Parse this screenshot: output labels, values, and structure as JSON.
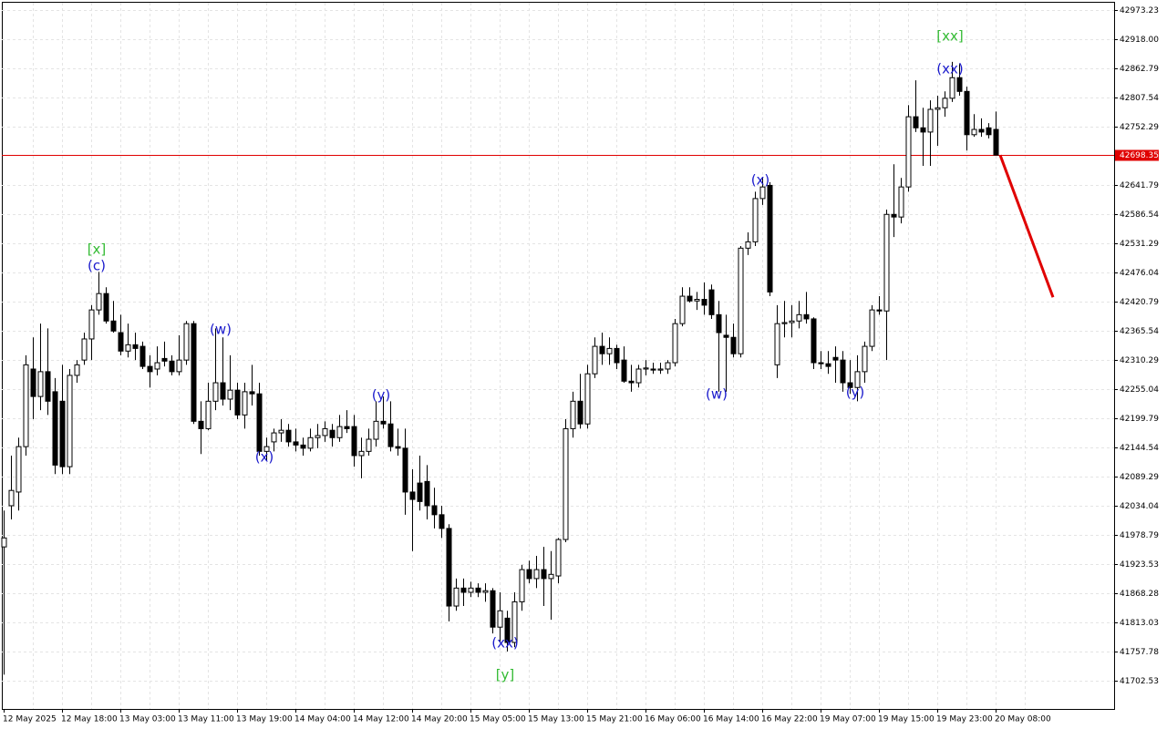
{
  "chart_data": {
    "type": "candlestick",
    "bull_color": "#ffffff",
    "bear_color": "#000000",
    "outline_color": "#000000",
    "grid": true,
    "current_price": 42698.35,
    "current_color": "#e00000",
    "forecast": [
      42698.35,
      42429
    ],
    "forecast_color": "#e00000",
    "ylim": [
      41649.0,
      42987.0
    ],
    "yticks": [
      {
        "value": 42973.23,
        "label": "42973.23"
      },
      {
        "value": 42918.0,
        "label": "42918.00"
      },
      {
        "value": 42862.79,
        "label": "42862.79"
      },
      {
        "value": 42807.54,
        "label": "42807.54"
      },
      {
        "value": 42752.29,
        "label": "42752.29"
      },
      {
        "value": 42641.79,
        "label": "42641.79"
      },
      {
        "value": 42586.54,
        "label": "42586.54"
      },
      {
        "value": 42531.29,
        "label": "42531.29"
      },
      {
        "value": 42476.04,
        "label": "42476.04"
      },
      {
        "value": 42420.79,
        "label": "42420.79"
      },
      {
        "value": 42365.54,
        "label": "42365.54"
      },
      {
        "value": 42310.29,
        "label": "42310.29"
      },
      {
        "value": 42255.04,
        "label": "42255.04"
      },
      {
        "value": 42199.79,
        "label": "42199.79"
      },
      {
        "value": 42144.54,
        "label": "42144.54"
      },
      {
        "value": 42089.29,
        "label": "42089.29"
      },
      {
        "value": 42034.04,
        "label": "42034.04"
      },
      {
        "value": 41978.79,
        "label": "41978.79"
      },
      {
        "value": 41923.53,
        "label": "41923.53"
      },
      {
        "value": 41868.28,
        "label": "41868.28"
      },
      {
        "value": 41813.03,
        "label": "41813.03"
      },
      {
        "value": 41757.78,
        "label": "41757.78"
      },
      {
        "value": 41702.53,
        "label": "41702.53"
      }
    ],
    "x_labels": [
      "12 May 2025",
      "12 May 18:00",
      "13 May 03:00",
      "13 May 11:00",
      "13 May 19:00",
      "14 May 04:00",
      "14 May 12:00",
      "14 May 20:00",
      "15 May 05:00",
      "15 May 13:00",
      "15 May 21:00",
      "16 May 06:00",
      "16 May 14:00",
      "16 May 22:00",
      "19 May 07:00",
      "19 May 15:00",
      "19 May 23:00",
      "20 May 08:00"
    ],
    "annotations": [
      {
        "text": "[x]",
        "color": "#33bb33"
      },
      {
        "text": "(c)",
        "color": "#1a1acc"
      },
      {
        "text": "(w)",
        "color": "#1a1acc"
      },
      {
        "text": "(x)",
        "color": "#1a1acc"
      },
      {
        "text": "(y)",
        "color": "#1a1acc"
      },
      {
        "text": "(xx)",
        "color": "#1a1acc"
      },
      {
        "text": "[y]",
        "color": "#33bb33"
      },
      {
        "text": "(w)",
        "color": "#1a1acc"
      },
      {
        "text": "(x)",
        "color": "#1a1acc"
      },
      {
        "text": "(y)",
        "color": "#1a1acc"
      },
      {
        "text": "(xx)",
        "color": "#1a1acc"
      },
      {
        "text": "[xx]",
        "color": "#33bb33"
      }
    ],
    "candles": [
      [
        41956,
        42025,
        41714,
        41973
      ],
      [
        42034,
        42129,
        42008,
        42063
      ],
      [
        42060,
        42163,
        42025,
        42146
      ],
      [
        42146,
        42319,
        42129,
        42301
      ],
      [
        42293,
        42353,
        42198,
        42241
      ],
      [
        42241,
        42379,
        42215,
        42288
      ],
      [
        42288,
        42370,
        42206,
        42232
      ],
      [
        42250,
        42276,
        42094,
        42111
      ],
      [
        42232,
        42301,
        42094,
        42108
      ],
      [
        42108,
        42293,
        42094,
        42281
      ],
      [
        42281,
        42310,
        42267,
        42301
      ],
      [
        42310,
        42362,
        42301,
        42350
      ],
      [
        42350,
        42414,
        42310,
        42405
      ],
      [
        42405,
        42477,
        42396,
        42436
      ],
      [
        42436,
        42448,
        42379,
        42384
      ],
      [
        42384,
        42422,
        42362,
        42365
      ],
      [
        42362,
        42396,
        42319,
        42327
      ],
      [
        42327,
        42379,
        42315,
        42339
      ],
      [
        42339,
        42362,
        42310,
        42332
      ],
      [
        42336,
        42345,
        42293,
        42298
      ],
      [
        42298,
        42319,
        42258,
        42288
      ],
      [
        42293,
        42336,
        42281,
        42305
      ],
      [
        42313,
        42345,
        42298,
        42308
      ],
      [
        42308,
        42319,
        42281,
        42288
      ],
      [
        42288,
        42357,
        42281,
        42310
      ],
      [
        42310,
        42384,
        42301,
        42379
      ],
      [
        42379,
        42384,
        42189,
        42194
      ],
      [
        42194,
        42232,
        42132,
        42180
      ],
      [
        42180,
        42267,
        42177,
        42232
      ],
      [
        42232,
        42370,
        42215,
        42267
      ],
      [
        42267,
        42353,
        42224,
        42236
      ],
      [
        42236,
        42319,
        42215,
        42253
      ],
      [
        42253,
        42267,
        42198,
        42206
      ],
      [
        42206,
        42267,
        42180,
        42250
      ],
      [
        42250,
        42301,
        42224,
        42246
      ],
      [
        42246,
        42267,
        42129,
        42137
      ],
      [
        42137,
        42163,
        42120,
        42146
      ],
      [
        42155,
        42180,
        42137,
        42172
      ],
      [
        42172,
        42198,
        42155,
        42177
      ],
      [
        42177,
        42189,
        42146,
        42155
      ],
      [
        42155,
        42180,
        42137,
        42149
      ],
      [
        42149,
        42163,
        42129,
        42143
      ],
      [
        42143,
        42180,
        42137,
        42163
      ],
      [
        42163,
        42189,
        42143,
        42167
      ],
      [
        42167,
        42194,
        42155,
        42180
      ],
      [
        42177,
        42189,
        42146,
        42163
      ],
      [
        42163,
        42206,
        42155,
        42184
      ],
      [
        42184,
        42215,
        42172,
        42180
      ],
      [
        42184,
        42206,
        42108,
        42129
      ],
      [
        42129,
        42163,
        42086,
        42137
      ],
      [
        42137,
        42180,
        42129,
        42160
      ],
      [
        42160,
        42232,
        42146,
        42194
      ],
      [
        42194,
        42241,
        42180,
        42189
      ],
      [
        42189,
        42232,
        42137,
        42146
      ],
      [
        42146,
        42180,
        42129,
        42143
      ],
      [
        42143,
        42180,
        42017,
        42060
      ],
      [
        42060,
        42103,
        41948,
        42046
      ],
      [
        42077,
        42129,
        42025,
        42042
      ],
      [
        42080,
        42111,
        42008,
        42034
      ],
      [
        42034,
        42068,
        41991,
        42017
      ],
      [
        42017,
        42034,
        41973,
        41991
      ],
      [
        41991,
        41999,
        41815,
        41844
      ],
      [
        41844,
        41896,
        41835,
        41878
      ],
      [
        41878,
        41896,
        41844,
        41870
      ],
      [
        41870,
        41890,
        41861,
        41878
      ],
      [
        41878,
        41887,
        41861,
        41870
      ],
      [
        41870,
        41887,
        41852,
        41873
      ],
      [
        41873,
        41878,
        41792,
        41804
      ],
      [
        41804,
        41870,
        41775,
        41835
      ],
      [
        41821,
        41835,
        41758,
        41775
      ],
      [
        41775,
        41870,
        41766,
        41852
      ],
      [
        41852,
        41922,
        41835,
        41913
      ],
      [
        41913,
        41930,
        41887,
        41896
      ],
      [
        41896,
        41939,
        41878,
        41913
      ],
      [
        41913,
        41956,
        41844,
        41896
      ],
      [
        41896,
        41948,
        41818,
        41904
      ],
      [
        41901,
        41973,
        41887,
        41970
      ],
      [
        41970,
        42198,
        41965,
        42180
      ],
      [
        42180,
        42250,
        42163,
        42232
      ],
      [
        42232,
        42284,
        42180,
        42189
      ],
      [
        42189,
        42301,
        42180,
        42284
      ],
      [
        42284,
        42353,
        42276,
        42336
      ],
      [
        42336,
        42362,
        42301,
        42322
      ],
      [
        42322,
        42353,
        42301,
        42332
      ],
      [
        42332,
        42339,
        42293,
        42305
      ],
      [
        42310,
        42336,
        42267,
        42270
      ],
      [
        42270,
        42301,
        42250,
        42267
      ],
      [
        42267,
        42301,
        42258,
        42293
      ],
      [
        42293,
        42310,
        42281,
        42295
      ],
      [
        42293,
        42305,
        42284,
        42291
      ],
      [
        42291,
        42305,
        42284,
        42293
      ],
      [
        42293,
        42310,
        42284,
        42305
      ],
      [
        42305,
        42388,
        42298,
        42379
      ],
      [
        42379,
        42448,
        42374,
        42431
      ],
      [
        42431,
        42448,
        42419,
        42422
      ],
      [
        42422,
        42439,
        42405,
        42425
      ],
      [
        42425,
        42457,
        42396,
        42414
      ],
      [
        42443,
        42453,
        42388,
        42396
      ],
      [
        42396,
        42422,
        42250,
        42362
      ],
      [
        42357,
        42396,
        42250,
        42353
      ],
      [
        42353,
        42379,
        42315,
        42322
      ],
      [
        42322,
        42526,
        42315,
        42522
      ],
      [
        42522,
        42552,
        42509,
        42534
      ],
      [
        42534,
        42629,
        42526,
        42616
      ],
      [
        42616,
        42655,
        42604,
        42638
      ],
      [
        42641,
        42647,
        42431,
        42439
      ],
      [
        42301,
        42414,
        42276,
        42379
      ],
      [
        42379,
        42422,
        42353,
        42381
      ],
      [
        42381,
        42414,
        42353,
        42384
      ],
      [
        42384,
        42422,
        42370,
        42396
      ],
      [
        42396,
        42439,
        42379,
        42388
      ],
      [
        42388,
        42391,
        42293,
        42305
      ],
      [
        42305,
        42327,
        42293,
        42303
      ],
      [
        42303,
        42327,
        42284,
        42298
      ],
      [
        42315,
        42336,
        42267,
        42310
      ],
      [
        42310,
        42327,
        42250,
        42267
      ],
      [
        42267,
        42310,
        42246,
        42258
      ],
      [
        42258,
        42319,
        42232,
        42288
      ],
      [
        42288,
        42345,
        42267,
        42336
      ],
      [
        42336,
        42414,
        42327,
        42405
      ],
      [
        42405,
        42431,
        42396,
        42403
      ],
      [
        42403,
        42595,
        42310,
        42586
      ],
      [
        42586,
        42681,
        42543,
        42581
      ],
      [
        42581,
        42655,
        42569,
        42638
      ],
      [
        42638,
        42793,
        42629,
        42771
      ],
      [
        42771,
        42840,
        42742,
        42750
      ],
      [
        42750,
        42788,
        42678,
        42742
      ],
      [
        42742,
        42802,
        42678,
        42785
      ],
      [
        42785,
        42811,
        42716,
        42788
      ],
      [
        42788,
        42819,
        42771,
        42806
      ],
      [
        42806,
        42875,
        42799,
        42845
      ],
      [
        42845,
        42871,
        42811,
        42819
      ],
      [
        42819,
        42828,
        42707,
        42737
      ],
      [
        42737,
        42776,
        42733,
        42747
      ],
      [
        42747,
        42768,
        42733,
        42742
      ],
      [
        42750,
        42759,
        42730,
        42737
      ],
      [
        42747,
        42781,
        42698.35,
        42698.35
      ]
    ]
  }
}
